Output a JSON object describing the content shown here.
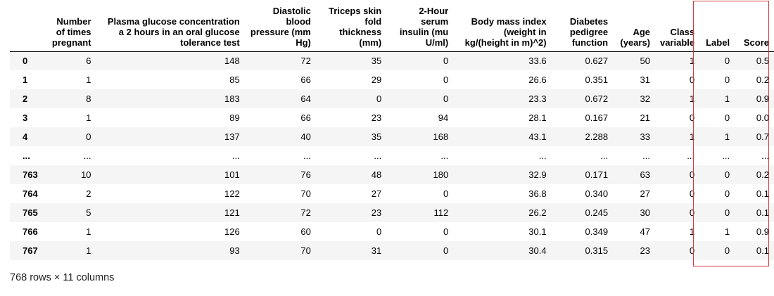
{
  "table": {
    "columns": [
      "Number of times pregnant",
      "Plasma glucose concentration a 2 hours in an oral glucose tolerance test",
      "Diastolic blood pressure (mm Hg)",
      "Triceps skin fold thickness (mm)",
      "2-Hour serum insulin (mu U/ml)",
      "Body mass index (weight in kg/(height in m)^2)",
      "Diabetes pedigree function",
      "Age (years)",
      "Class variable",
      "Label",
      "Score"
    ],
    "rows": [
      {
        "index": "0",
        "cells": [
          "6",
          "148",
          "72",
          "35",
          "0",
          "33.6",
          "0.627",
          "50",
          "1",
          "0",
          "0.5"
        ]
      },
      {
        "index": "1",
        "cells": [
          "1",
          "85",
          "66",
          "29",
          "0",
          "26.6",
          "0.351",
          "31",
          "0",
          "0",
          "0.2"
        ]
      },
      {
        "index": "2",
        "cells": [
          "8",
          "183",
          "64",
          "0",
          "0",
          "23.3",
          "0.672",
          "32",
          "1",
          "1",
          "0.9"
        ]
      },
      {
        "index": "3",
        "cells": [
          "1",
          "89",
          "66",
          "23",
          "94",
          "28.1",
          "0.167",
          "21",
          "0",
          "0",
          "0.0"
        ]
      },
      {
        "index": "4",
        "cells": [
          "0",
          "137",
          "40",
          "35",
          "168",
          "43.1",
          "2.288",
          "33",
          "1",
          "1",
          "0.7"
        ]
      },
      {
        "index": "...",
        "cells": [
          "...",
          "...",
          "...",
          "...",
          "...",
          "...",
          "...",
          "...",
          "...",
          "...",
          "..."
        ]
      },
      {
        "index": "763",
        "cells": [
          "10",
          "101",
          "76",
          "48",
          "180",
          "32.9",
          "0.171",
          "63",
          "0",
          "0",
          "0.2"
        ]
      },
      {
        "index": "764",
        "cells": [
          "2",
          "122",
          "70",
          "27",
          "0",
          "36.8",
          "0.340",
          "27",
          "0",
          "0",
          "0.1"
        ]
      },
      {
        "index": "765",
        "cells": [
          "5",
          "121",
          "72",
          "23",
          "112",
          "26.2",
          "0.245",
          "30",
          "0",
          "0",
          "0.1"
        ]
      },
      {
        "index": "766",
        "cells": [
          "1",
          "126",
          "60",
          "0",
          "0",
          "30.1",
          "0.349",
          "47",
          "1",
          "1",
          "0.9"
        ]
      },
      {
        "index": "767",
        "cells": [
          "1",
          "93",
          "70",
          "31",
          "0",
          "30.4",
          "0.315",
          "23",
          "0",
          "0",
          "0.1"
        ]
      }
    ]
  },
  "footer": {
    "shape_text": "768 rows × 11 columns"
  },
  "highlight": {
    "color": "#d6383f",
    "columns": [
      "Label",
      "Score"
    ]
  }
}
